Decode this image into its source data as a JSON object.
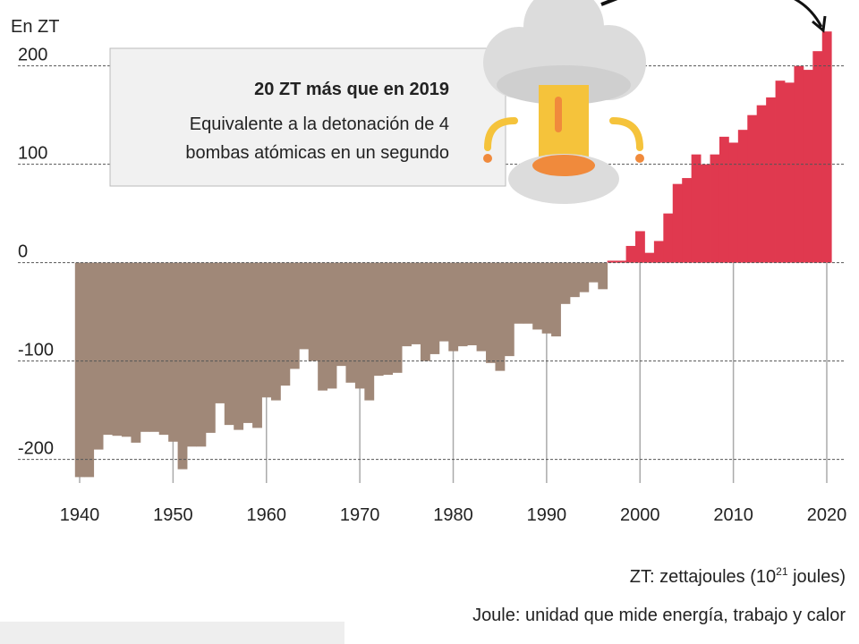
{
  "chart_data": {
    "type": "bar",
    "y_label": "En ZT",
    "annotation": {
      "title": "20 ZT más que en 2019",
      "lines": [
        "Equivalente a la detonación de 4",
        "bombas atómicas en un segundo"
      ]
    },
    "notes": [
      {
        "text": "ZT: zettajoules (10",
        "sup": "21",
        "tail": " joules)"
      },
      {
        "text": "Joule: unidad que mide energía, trabajo y calor"
      }
    ],
    "x": [
      1940,
      1941,
      1942,
      1943,
      1944,
      1945,
      1946,
      1947,
      1948,
      1949,
      1950,
      1951,
      1952,
      1953,
      1954,
      1955,
      1956,
      1957,
      1958,
      1959,
      1960,
      1961,
      1962,
      1963,
      1964,
      1965,
      1966,
      1967,
      1968,
      1969,
      1970,
      1971,
      1972,
      1973,
      1974,
      1975,
      1976,
      1977,
      1978,
      1979,
      1980,
      1981,
      1982,
      1983,
      1984,
      1985,
      1986,
      1987,
      1988,
      1989,
      1990,
      1991,
      1992,
      1993,
      1994,
      1995,
      1996,
      1997,
      1998,
      1999,
      2000,
      2001,
      2002,
      2003,
      2004,
      2005,
      2006,
      2007,
      2008,
      2009,
      2010,
      2011,
      2012,
      2013,
      2014,
      2015,
      2016,
      2017,
      2018,
      2019,
      2020
    ],
    "values": [
      -218,
      -218,
      -190,
      -175,
      -176,
      -177,
      -183,
      -172,
      -172,
      -175,
      -182,
      -210,
      -187,
      -187,
      -173,
      -143,
      -165,
      -170,
      -163,
      -168,
      -137,
      -140,
      -125,
      -108,
      -88,
      -100,
      -130,
      -128,
      -105,
      -122,
      -128,
      -140,
      -115,
      -114,
      -112,
      -85,
      -83,
      -100,
      -93,
      -80,
      -90,
      -85,
      -84,
      -90,
      -102,
      -110,
      -95,
      -62,
      -62,
      -68,
      -72,
      -75,
      -42,
      -35,
      -30,
      -20,
      -27,
      2,
      2,
      17,
      32,
      10,
      22,
      50,
      80,
      86,
      110,
      100,
      110,
      128,
      122,
      135,
      150,
      160,
      168,
      185,
      183,
      200,
      196,
      215,
      235
    ],
    "negative_color": "#a08878",
    "positive_color": "#e0394f",
    "xlim": [
      1939.5,
      2020.5
    ],
    "xticks": [
      1940,
      1950,
      1960,
      1970,
      1980,
      1990,
      2000,
      2010,
      2020
    ],
    "ylim": [
      -224,
      267
    ],
    "yticks": [
      -200,
      -100,
      0,
      100,
      200
    ],
    "grid": true
  }
}
